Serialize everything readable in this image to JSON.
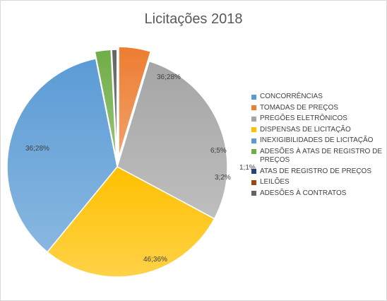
{
  "chart_data": {
    "type": "pie",
    "title": "Licitações 2018",
    "legend_position": "right",
    "slices": [
      {
        "label": "CONCORRÊNCIAS",
        "value": 0,
        "percent": 0,
        "color": "#5b9bd5",
        "data_label": ""
      },
      {
        "label": "TOMADAS DE PREÇOS",
        "value": 6,
        "percent": 5,
        "color": "#ed7d31",
        "data_label": "6;5%"
      },
      {
        "label": "PREGÕES ELETRÔNICOS",
        "value": 36,
        "percent": 28,
        "color": "#a5a5a5",
        "data_label": "36;28%"
      },
      {
        "label": "DISPENSAS DE LICITAÇÃO",
        "value": 36,
        "percent": 28,
        "color": "#ffc000",
        "data_label": "36;28%"
      },
      {
        "label": "INEXIGIBILIDADES DE LICITAÇÃO",
        "value": 46,
        "percent": 36,
        "color": "#5b9bd5",
        "data_label": "46;36%"
      },
      {
        "label": "ADESÕES À ATAS DE REGISTRO DE PREÇOS",
        "value": 3,
        "percent": 2,
        "color": "#70ad47",
        "data_label": "3;2%"
      },
      {
        "label": "ATAS DE REGISTRO DE PREÇOS",
        "value": 0,
        "percent": 0,
        "color": "#264478",
        "data_label": ""
      },
      {
        "label": "LEILÕES",
        "value": 0,
        "percent": 0,
        "color": "#9e480e",
        "data_label": ""
      },
      {
        "label": "ADESÕES À CONTRATOS",
        "value": 1,
        "percent": 1,
        "color": "#636363",
        "data_label": "1;1%"
      }
    ]
  }
}
